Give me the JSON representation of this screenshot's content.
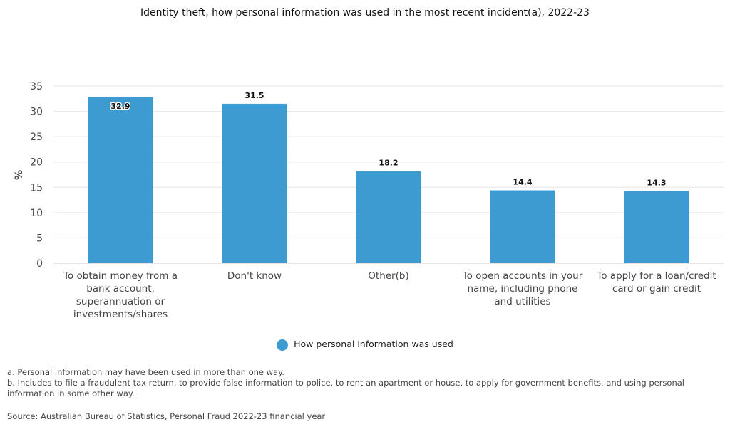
{
  "chart_data": {
    "type": "bar",
    "title": "Identity theft, how personal information was used in the most recent incident(a), 2022-23",
    "ylabel": "%",
    "xlabel": "",
    "ylim": [
      0,
      35
    ],
    "yticks": [
      0,
      5,
      10,
      15,
      20,
      25,
      30,
      35
    ],
    "grid": true,
    "legend_placement": "bottom",
    "categories": [
      [
        "To obtain money from a",
        "bank account,",
        "superannuation or",
        "investments/shares"
      ],
      [
        "Don't know"
      ],
      [
        "Other(b)"
      ],
      [
        "To open accounts in your",
        "name, including phone",
        "and utilities"
      ],
      [
        "To apply for a loan/credit",
        "card or gain credit"
      ]
    ],
    "series": [
      {
        "name": "How personal information was used",
        "values": [
          32.9,
          31.5,
          18.2,
          14.4,
          14.3
        ],
        "color": "#3d9bd1"
      }
    ]
  },
  "notes": [
    "a. Personal information may have been used in more than one way.",
    "b. Includes to file a fraudulent tax return, to provide false information to police, to rent an apartment or house, to apply for government benefits, and using personal information in some other way."
  ],
  "source": "Source: Australian Bureau of Statistics, Personal Fraud 2022-23 financial year"
}
